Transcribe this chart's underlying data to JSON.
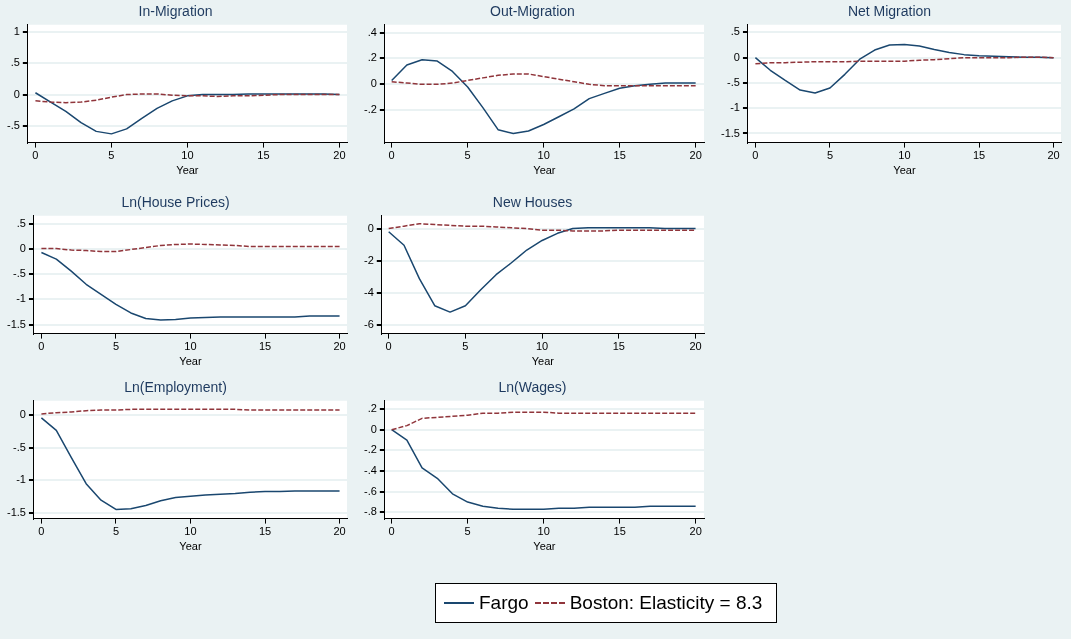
{
  "chart_data": [
    {
      "type": "line",
      "title": "In-Migration",
      "xlabel": "Year",
      "x": [
        0,
        1,
        2,
        3,
        4,
        5,
        6,
        7,
        8,
        9,
        10,
        11,
        12,
        13,
        14,
        15,
        16,
        17,
        18,
        19,
        20
      ],
      "xlim": [
        -0.5,
        20.5
      ],
      "xticks": [
        0,
        5,
        10,
        15,
        20
      ],
      "ylim": [
        -0.77,
        1.12
      ],
      "yticks": [
        {
          "value": -0.5,
          "label": "-.5"
        },
        0,
        {
          "value": 0.5,
          "label": ".5"
        },
        1
      ],
      "grid": "y",
      "legend": false,
      "marker": "none",
      "series": [
        {
          "color": "#1a476f",
          "line_style": "solid",
          "values": [
            0.03,
            -0.12,
            -0.27,
            -0.45,
            -0.59,
            -0.63,
            -0.55,
            -0.38,
            -0.22,
            -0.1,
            -0.02,
            0,
            0,
            0,
            0.01,
            0.01,
            0.01,
            0.01,
            0.01,
            0.01,
            0
          ]
        },
        {
          "color": "#90353b",
          "line_style": "dashed",
          "values": [
            -0.1,
            -0.12,
            -0.13,
            -0.12,
            -0.09,
            -0.04,
            0,
            0.01,
            0.01,
            -0.01,
            -0.02,
            -0.02,
            -0.03,
            -0.02,
            -0.02,
            -0.01,
            0,
            0,
            0,
            0,
            0
          ]
        }
      ]
    },
    {
      "type": "line",
      "title": "Out-Migration",
      "xlabel": "Year",
      "x": [
        0,
        1,
        2,
        3,
        4,
        5,
        6,
        7,
        8,
        9,
        10,
        11,
        12,
        13,
        14,
        15,
        16,
        17,
        18,
        19,
        20
      ],
      "xlim": [
        -0.45,
        20.55
      ],
      "xticks": [
        0,
        5,
        10,
        15,
        20
      ],
      "ylim": [
        -0.45,
        0.46
      ],
      "yticks": [
        {
          "value": -0.2,
          "label": "-.2"
        },
        0,
        {
          "value": 0.2,
          "label": ".2"
        },
        {
          "value": 0.4,
          "label": ".4"
        }
      ],
      "grid": "y",
      "legend": false,
      "marker": "none",
      "series": [
        {
          "color": "#1a476f",
          "line_style": "solid",
          "values": [
            0.03,
            0.15,
            0.19,
            0.18,
            0.1,
            -0.02,
            -0.18,
            -0.35,
            -0.38,
            -0.36,
            -0.31,
            -0.25,
            -0.19,
            -0.11,
            -0.07,
            -0.03,
            -0.01,
            0,
            0.01,
            0.01,
            0.01
          ]
        },
        {
          "color": "#90353b",
          "line_style": "dashed",
          "values": [
            0.02,
            0.01,
            0,
            0,
            0.01,
            0.03,
            0.05,
            0.07,
            0.08,
            0.08,
            0.06,
            0.04,
            0.02,
            0,
            -0.01,
            -0.01,
            -0.01,
            -0.01,
            -0.01,
            -0.01,
            -0.01
          ]
        }
      ]
    },
    {
      "type": "line",
      "title": "Net Migration",
      "xlabel": "Year",
      "x": [
        0,
        1,
        2,
        3,
        4,
        5,
        6,
        7,
        8,
        9,
        10,
        11,
        12,
        13,
        14,
        15,
        16,
        17,
        18,
        19,
        20
      ],
      "xlim": [
        -0.5,
        20.5
      ],
      "xticks": [
        0,
        5,
        10,
        15,
        20
      ],
      "ylim": [
        -1.68,
        0.65
      ],
      "yticks": [
        {
          "value": -1.5,
          "label": "-1.5"
        },
        -1,
        {
          "value": -0.5,
          "label": "-.5"
        },
        0,
        {
          "value": 0.5,
          "label": ".5"
        }
      ],
      "grid": "y",
      "legend": false,
      "marker": "none",
      "series": [
        {
          "color": "#1a476f",
          "line_style": "solid",
          "values": [
            0,
            -0.25,
            -0.45,
            -0.64,
            -0.7,
            -0.6,
            -0.33,
            -0.03,
            0.15,
            0.25,
            0.26,
            0.23,
            0.16,
            0.1,
            0.06,
            0.04,
            0.03,
            0.02,
            0.01,
            0.01,
            0
          ]
        },
        {
          "color": "#90353b",
          "line_style": "dashed",
          "values": [
            -0.12,
            -0.1,
            -0.1,
            -0.09,
            -0.08,
            -0.08,
            -0.08,
            -0.07,
            -0.07,
            -0.07,
            -0.07,
            -0.05,
            -0.04,
            -0.02,
            0,
            0,
            0,
            0,
            0.01,
            0.01,
            0
          ]
        }
      ]
    },
    {
      "type": "line",
      "title": "Ln(House Prices)",
      "xlabel": "Year",
      "x": [
        0,
        1,
        2,
        3,
        4,
        5,
        6,
        7,
        8,
        9,
        10,
        11,
        12,
        13,
        14,
        15,
        16,
        17,
        18,
        19,
        20
      ],
      "xlim": [
        -0.5,
        20.5
      ],
      "xticks": [
        0,
        5,
        10,
        15,
        20
      ],
      "ylim": [
        -1.68,
        0.66
      ],
      "yticks": [
        {
          "value": -1.5,
          "label": "-1.5"
        },
        -1,
        {
          "value": -0.5,
          "label": "-.5"
        },
        0,
        {
          "value": 0.5,
          "label": ".5"
        }
      ],
      "grid": "y",
      "legend": false,
      "marker": "none",
      "series": [
        {
          "color": "#1a476f",
          "line_style": "solid",
          "values": [
            -0.07,
            -0.2,
            -0.44,
            -0.7,
            -0.9,
            -1.1,
            -1.27,
            -1.38,
            -1.41,
            -1.4,
            -1.37,
            -1.36,
            -1.35,
            -1.35,
            -1.35,
            -1.35,
            -1.35,
            -1.35,
            -1.33,
            -1.33,
            -1.33
          ]
        },
        {
          "color": "#90353b",
          "line_style": "dashed",
          "values": [
            0.01,
            0.01,
            -0.02,
            -0.03,
            -0.05,
            -0.05,
            -0.01,
            0.03,
            0.07,
            0.09,
            0.1,
            0.09,
            0.08,
            0.07,
            0.05,
            0.05,
            0.05,
            0.05,
            0.05,
            0.05,
            0.05
          ]
        }
      ]
    },
    {
      "type": "line",
      "title": "New Houses",
      "xlabel": "Year",
      "x": [
        0,
        1,
        2,
        3,
        4,
        5,
        6,
        7,
        8,
        9,
        10,
        11,
        12,
        13,
        14,
        15,
        16,
        17,
        18,
        19,
        20
      ],
      "xlim": [
        -0.45,
        20.55
      ],
      "xticks": [
        0,
        5,
        10,
        15,
        20
      ],
      "ylim": [
        -6.55,
        0.85
      ],
      "yticks": [
        -6,
        -4,
        -2,
        0
      ],
      "grid": "y",
      "legend": false,
      "marker": "none",
      "series": [
        {
          "color": "#1a476f",
          "line_style": "solid",
          "values": [
            -0.15,
            -1,
            -3.1,
            -4.8,
            -5.2,
            -4.8,
            -3.8,
            -2.85,
            -2.1,
            -1.3,
            -0.7,
            -0.25,
            0.05,
            0.1,
            0.1,
            0.1,
            0.1,
            0.1,
            0.05,
            0.05,
            0.05
          ]
        },
        {
          "color": "#90353b",
          "line_style": "dashed",
          "values": [
            0.05,
            0.2,
            0.35,
            0.3,
            0.25,
            0.2,
            0.2,
            0.15,
            0.1,
            0.05,
            -0.05,
            -0.05,
            -0.1,
            -0.1,
            -0.1,
            -0.05,
            -0.05,
            -0.05,
            -0.05,
            -0.05,
            -0.05
          ]
        }
      ]
    },
    {
      "type": "line",
      "title": "Ln(Employment)",
      "xlabel": "Year",
      "x": [
        0,
        1,
        2,
        3,
        4,
        5,
        6,
        7,
        8,
        9,
        10,
        11,
        12,
        13,
        14,
        15,
        16,
        17,
        18,
        19,
        20
      ],
      "xlim": [
        -0.5,
        20.5
      ],
      "xticks": [
        0,
        5,
        10,
        15,
        20
      ],
      "ylim": [
        -1.58,
        0.21
      ],
      "yticks": [
        {
          "value": -1.5,
          "label": "-1.5"
        },
        -1,
        {
          "value": -0.5,
          "label": "-.5"
        },
        0
      ],
      "grid": "y",
      "legend": false,
      "marker": "none",
      "series": [
        {
          "color": "#1a476f",
          "line_style": "solid",
          "values": [
            -0.05,
            -0.24,
            -0.65,
            -1.05,
            -1.3,
            -1.44,
            -1.43,
            -1.38,
            -1.31,
            -1.26,
            -1.24,
            -1.22,
            -1.21,
            -1.2,
            -1.18,
            -1.17,
            -1.17,
            -1.16,
            -1.16,
            -1.16,
            -1.16
          ]
        },
        {
          "color": "#90353b",
          "line_style": "dashed",
          "values": [
            0.01,
            0.03,
            0.04,
            0.06,
            0.07,
            0.07,
            0.08,
            0.08,
            0.08,
            0.08,
            0.08,
            0.08,
            0.08,
            0.08,
            0.07,
            0.07,
            0.07,
            0.07,
            0.07,
            0.07,
            0.07
          ]
        }
      ]
    },
    {
      "type": "line",
      "title": "Ln(Wages)",
      "xlabel": "Year",
      "x": [
        0,
        1,
        2,
        3,
        4,
        5,
        6,
        7,
        8,
        9,
        10,
        11,
        12,
        13,
        14,
        15,
        16,
        17,
        18,
        19,
        20
      ],
      "xlim": [
        -0.45,
        20.55
      ],
      "xticks": [
        0,
        5,
        10,
        15,
        20
      ],
      "ylim": [
        -0.86,
        0.28
      ],
      "yticks": [
        {
          "value": -0.8,
          "label": "-.8"
        },
        {
          "value": -0.6,
          "label": "-.6"
        },
        {
          "value": -0.4,
          "label": "-.4"
        },
        {
          "value": -0.2,
          "label": "-.2"
        },
        0,
        {
          "value": 0.2,
          "label": ".2"
        }
      ],
      "grid": "y",
      "legend": "bottom",
      "marker": "none",
      "series": [
        {
          "name": "Fargo",
          "color": "#1a476f",
          "line_style": "solid",
          "values": [
            0,
            -0.1,
            -0.37,
            -0.47,
            -0.62,
            -0.7,
            -0.74,
            -0.76,
            -0.77,
            -0.77,
            -0.77,
            -0.76,
            -0.76,
            -0.75,
            -0.75,
            -0.75,
            -0.75,
            -0.74,
            -0.74,
            -0.74,
            -0.74
          ]
        },
        {
          "name": "Boston: Elasticity = 8.3",
          "color": "#90353b",
          "line_style": "dashed",
          "values": [
            0,
            0.04,
            0.11,
            0.12,
            0.13,
            0.14,
            0.16,
            0.16,
            0.17,
            0.17,
            0.17,
            0.16,
            0.16,
            0.16,
            0.16,
            0.16,
            0.16,
            0.16,
            0.16,
            0.16,
            0.16
          ]
        }
      ]
    }
  ]
}
